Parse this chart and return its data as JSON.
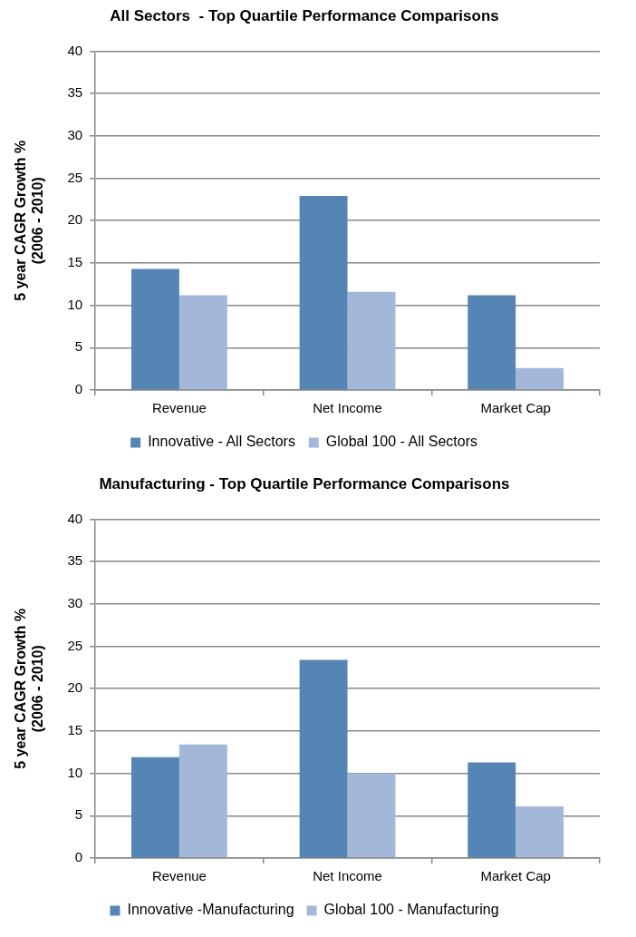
{
  "chart_data": [
    {
      "type": "bar",
      "title": "All Sectors  - Top Quartile Performance Comparisons",
      "ylabel": "5 year CAGR Growth %\n(2006 - 2010)",
      "categories": [
        "Revenue",
        "Net Income",
        "Market Cap"
      ],
      "series": [
        {
          "name": "Innovative - All Sectors",
          "color": "#5585b5",
          "values": [
            14.3,
            22.9,
            11.2
          ]
        },
        {
          "name": "Global 100 - All Sectors",
          "color": "#a3b7d9",
          "values": [
            11.2,
            11.6,
            2.6
          ]
        }
      ],
      "ylim": [
        0,
        40
      ],
      "yticks": [
        0,
        5,
        10,
        15,
        20,
        25,
        30,
        35,
        40
      ],
      "grid": "y",
      "legend": "bottom"
    },
    {
      "type": "bar",
      "title": "Manufacturing - Top Quartile Performance Comparisons",
      "ylabel": "5 year CAGR Growth %\n(2006 - 2010)",
      "categories": [
        "Revenue",
        "Net Income",
        "Market Cap"
      ],
      "series": [
        {
          "name": "Innovative -Manufacturing",
          "color": "#5585b5",
          "values": [
            11.9,
            23.4,
            11.3
          ]
        },
        {
          "name": "Global 100 - Manufacturing",
          "color": "#a3b7d9",
          "values": [
            13.4,
            10.0,
            6.1
          ]
        }
      ],
      "ylim": [
        0,
        40
      ],
      "yticks": [
        0,
        5,
        10,
        15,
        20,
        25,
        30,
        35,
        40
      ],
      "grid": "y",
      "legend": "bottom"
    }
  ]
}
